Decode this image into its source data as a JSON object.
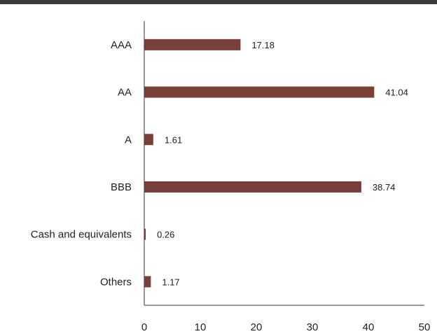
{
  "chart_data": {
    "type": "bar",
    "orientation": "horizontal",
    "categories": [
      "AAA",
      "AA",
      "A",
      "BBB",
      "Cash and equivalents",
      "Others"
    ],
    "values": [
      17.18,
      41.04,
      1.61,
      38.74,
      0.26,
      1.17
    ],
    "value_labels": [
      "17.18",
      "41.04",
      "1.61",
      "38.74",
      "0.26",
      "1.17"
    ],
    "xlim": [
      0,
      50
    ],
    "x_ticks": [
      0,
      10,
      20,
      30,
      40,
      50
    ],
    "x_tick_labels": [
      "0",
      "10",
      "20",
      "30",
      "40",
      "50"
    ],
    "bar_color": "#7b3f3a",
    "grid": false,
    "legend": "none"
  }
}
